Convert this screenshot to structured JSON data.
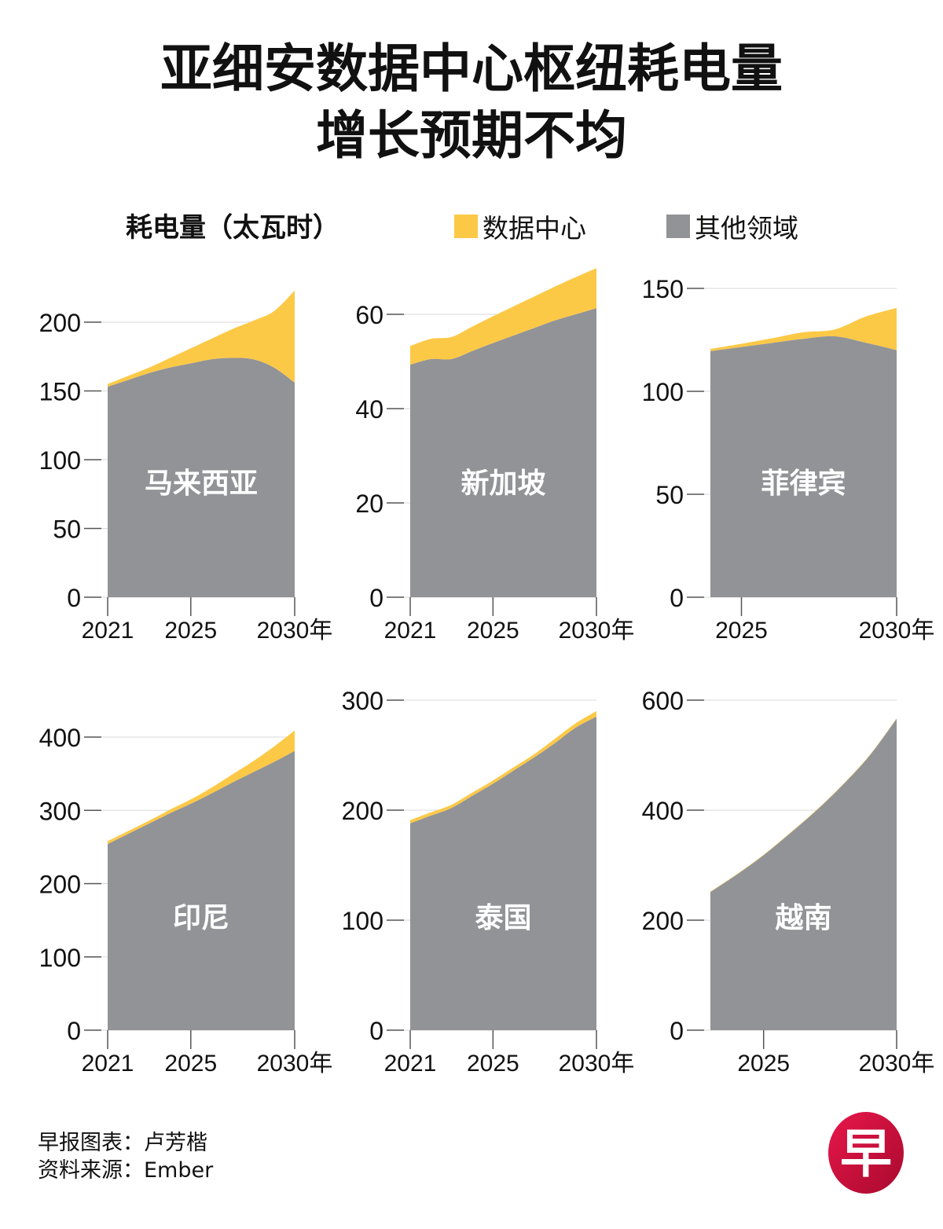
{
  "header": {
    "title_line1": "亚细安数据中心枢纽耗电量",
    "title_line2": "增长预期不均"
  },
  "legend": {
    "unit_label": "耗电量（太瓦时）",
    "items": [
      {
        "label": "数据中心",
        "color": "#FCC947"
      },
      {
        "label": "其他领域",
        "color": "#929396"
      }
    ]
  },
  "footer": {
    "credit": "早报图表：卢芳楷",
    "source": "资料来源：Ember",
    "logo_glyph": "早",
    "logo_color": "#C8102E"
  },
  "chart_data": [
    {
      "type": "area",
      "stacked": true,
      "title": "马来西亚",
      "x": [
        2021,
        2022,
        2023,
        2024,
        2025,
        2026,
        2027,
        2028,
        2029,
        2030
      ],
      "xticks": [
        "2021",
        "2025",
        "2030年"
      ],
      "xtick_values": [
        2021,
        2025,
        2030
      ],
      "yticks": [
        0,
        50,
        100,
        150,
        200
      ],
      "ylim": [
        0,
        225
      ],
      "series": [
        {
          "name": "其他领域",
          "values": [
            153,
            158,
            163,
            167,
            170,
            173,
            174,
            173,
            167,
            156
          ]
        },
        {
          "name": "数据中心",
          "values": [
            2,
            3,
            4,
            7,
            11,
            15,
            21,
            28,
            41,
            67
          ]
        }
      ]
    },
    {
      "type": "area",
      "stacked": true,
      "title": "新加坡",
      "x": [
        2021,
        2022,
        2023,
        2024,
        2025,
        2026,
        2027,
        2028,
        2029,
        2030
      ],
      "xticks": [
        "2021",
        "2025",
        "2030年"
      ],
      "xtick_values": [
        2021,
        2025,
        2030
      ],
      "yticks": [
        0,
        20,
        40,
        60
      ],
      "ylim": [
        0,
        70
      ],
      "series": [
        {
          "name": "其他领域",
          "values": [
            49.3,
            50.5,
            50.5,
            52.2,
            53.9,
            55.5,
            57.1,
            58.7,
            60.0,
            61.3
          ]
        },
        {
          "name": "数据中心",
          "values": [
            4.0,
            4.3,
            4.7,
            5.2,
            5.7,
            6.2,
            6.7,
            7.2,
            7.9,
            8.5
          ]
        }
      ]
    },
    {
      "type": "area",
      "stacked": true,
      "title": "菲律宾",
      "x": [
        2024,
        2025,
        2026,
        2027,
        2028,
        2029,
        2030
      ],
      "xticks": [
        "2025",
        "2030年"
      ],
      "xtick_values": [
        2025,
        2030
      ],
      "yticks": [
        0,
        50,
        100,
        150
      ],
      "ylim": [
        0,
        150
      ],
      "series": [
        {
          "name": "其他领域",
          "values": [
            119.5,
            121.5,
            123.5,
            125.5,
            126.7,
            123.6,
            120.0
          ]
        },
        {
          "name": "数据中心",
          "values": [
            1.1,
            1.6,
            2.3,
            3.2,
            3.3,
            12.7,
            20.5
          ]
        }
      ]
    },
    {
      "type": "area",
      "stacked": true,
      "title": "印尼",
      "x": [
        2021,
        2022,
        2023,
        2024,
        2025,
        2026,
        2027,
        2028,
        2029,
        2030
      ],
      "xticks": [
        "2021",
        "2025",
        "2030年"
      ],
      "xtick_values": [
        2021,
        2025,
        2030
      ],
      "yticks": [
        0,
        100,
        200,
        300,
        400
      ],
      "ylim": [
        0,
        410
      ],
      "series": [
        {
          "name": "其他领域",
          "values": [
            254,
            268,
            282,
            296,
            309,
            323,
            338,
            352,
            366,
            381
          ]
        },
        {
          "name": "数据中心",
          "values": [
            4,
            4,
            4,
            5,
            6,
            8,
            11,
            15,
            21,
            28
          ]
        }
      ]
    },
    {
      "type": "area",
      "stacked": true,
      "title": "泰国",
      "x": [
        2021,
        2022,
        2023,
        2024,
        2025,
        2026,
        2027,
        2028,
        2029,
        2030
      ],
      "xticks": [
        "2021",
        "2025",
        "2030年"
      ],
      "xtick_values": [
        2021,
        2025,
        2030
      ],
      "yticks": [
        0,
        100,
        200,
        300
      ],
      "ylim": [
        0,
        300
      ],
      "series": [
        {
          "name": "其他领域",
          "values": [
            188,
            195,
            202,
            213,
            224,
            236,
            248,
            261,
            275,
            285
          ]
        },
        {
          "name": "数据中心",
          "values": [
            3,
            3,
            3,
            3,
            3,
            3,
            3,
            4,
            4,
            5
          ]
        }
      ]
    },
    {
      "type": "area",
      "stacked": true,
      "title": "越南",
      "x": [
        2023,
        2024,
        2025,
        2026,
        2027,
        2028,
        2029,
        2030
      ],
      "xticks": [
        "2025",
        "2030年"
      ],
      "xtick_values": [
        2025,
        2030
      ],
      "yticks": [
        0,
        200,
        400,
        600
      ],
      "ylim": [
        0,
        600
      ],
      "series": [
        {
          "name": "其他领域",
          "values": [
            251,
            283,
            318,
            358,
            400,
            447,
            500,
            566
          ]
        },
        {
          "name": "数据中心",
          "values": [
            1,
            1,
            1,
            1,
            1,
            1,
            1,
            1
          ]
        }
      ]
    }
  ]
}
